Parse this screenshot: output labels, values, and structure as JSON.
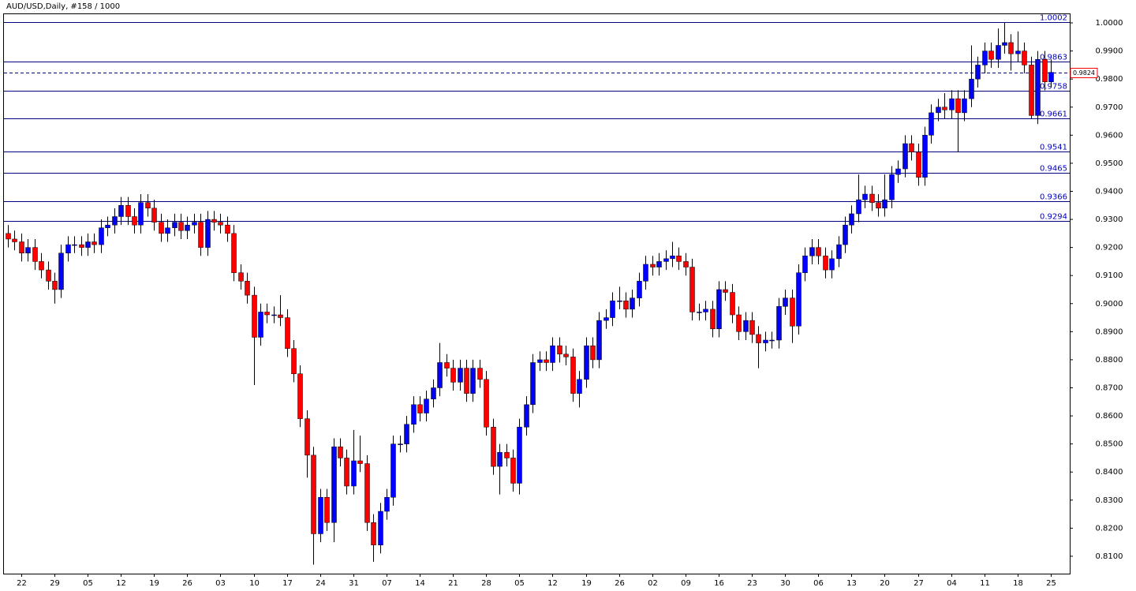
{
  "chart_data": {
    "type": "candlestick",
    "title": "AUD/USD,Daily, #158 / 1000",
    "categories": [
      null,
      null,
      "22",
      null,
      null,
      null,
      null,
      "29",
      null,
      null,
      null,
      null,
      "05",
      null,
      null,
      null,
      null,
      "12",
      null,
      null,
      null,
      null,
      "19",
      null,
      null,
      null,
      null,
      "26",
      null,
      null,
      null,
      null,
      "03",
      null,
      null,
      null,
      null,
      "10",
      null,
      null,
      null,
      null,
      "17",
      null,
      null,
      null,
      null,
      "24",
      null,
      null,
      null,
      null,
      "31",
      null,
      null,
      null,
      null,
      "07",
      null,
      null,
      null,
      null,
      "14",
      null,
      null,
      null,
      null,
      "21",
      null,
      null,
      null,
      null,
      "28",
      null,
      null,
      null,
      null,
      "05",
      null,
      null,
      null,
      null,
      "12",
      null,
      null,
      null,
      null,
      "19",
      null,
      null,
      null,
      null,
      "26",
      null,
      null,
      null,
      null,
      "02",
      null,
      null,
      null,
      null,
      "09",
      null,
      null,
      null,
      null,
      "16",
      null,
      null,
      null,
      null,
      "23",
      null,
      null,
      null,
      null,
      "30",
      null,
      null,
      null,
      null,
      "06",
      null,
      null,
      null,
      null,
      "13",
      null,
      null,
      null,
      null,
      "20",
      null,
      null,
      null,
      null,
      "27",
      null,
      null,
      null,
      null,
      "04",
      null,
      null,
      null,
      null,
      "11",
      null,
      null,
      null,
      null,
      "18",
      null,
      null,
      null,
      null,
      "25"
    ],
    "open": [
      0.925,
      0.923,
      0.922,
      0.918,
      0.92,
      0.915,
      0.912,
      0.908,
      0.905,
      0.918,
      0.921,
      0.921,
      0.92,
      0.922,
      0.921,
      0.927,
      0.928,
      0.931,
      0.935,
      0.931,
      0.928,
      0.936,
      0.934,
      0.929,
      0.925,
      0.927,
      0.929,
      0.926,
      0.928,
      0.929,
      0.92,
      0.93,
      0.929,
      0.928,
      0.925,
      0.911,
      0.908,
      0.903,
      0.888,
      0.897,
      0.896,
      0.896,
      0.895,
      0.884,
      0.875,
      0.859,
      0.846,
      0.818,
      0.831,
      0.822,
      0.849,
      0.845,
      0.835,
      0.844,
      0.843,
      0.822,
      0.814,
      0.826,
      0.831,
      0.85,
      0.85,
      0.857,
      0.864,
      0.861,
      0.866,
      0.87,
      0.879,
      0.877,
      0.872,
      0.877,
      0.868,
      0.877,
      0.873,
      0.856,
      0.842,
      0.847,
      0.845,
      0.836,
      0.856,
      0.864,
      0.879,
      0.88,
      0.879,
      0.885,
      0.882,
      0.881,
      0.868,
      0.873,
      0.885,
      0.88,
      0.894,
      0.895,
      0.901,
      0.901,
      0.898,
      0.902,
      0.908,
      0.914,
      0.913,
      0.915,
      0.916,
      0.917,
      0.915,
      0.913,
      0.897,
      0.897,
      0.898,
      0.891,
      0.905,
      0.904,
      0.896,
      0.89,
      0.894,
      0.889,
      0.886,
      0.887,
      0.887,
      0.899,
      0.902,
      0.892,
      0.911,
      0.917,
      0.92,
      0.917,
      0.912,
      0.916,
      0.921,
      0.928,
      0.932,
      0.937,
      0.939,
      0.936,
      0.934,
      0.937,
      0.946,
      0.948,
      0.957,
      0.954,
      0.945,
      0.96,
      0.968,
      0.97,
      0.969,
      0.973,
      0.968,
      0.973,
      0.98,
      0.985,
      0.99,
      0.987,
      0.992,
      0.993,
      0.989,
      0.99,
      0.985,
      0.967,
      0.987,
      0.979
    ],
    "high": [
      0.928,
      0.926,
      0.925,
      0.923,
      0.923,
      0.918,
      0.915,
      0.911,
      0.921,
      0.924,
      0.924,
      0.924,
      0.925,
      0.925,
      0.93,
      0.931,
      0.934,
      0.938,
      0.938,
      0.934,
      0.939,
      0.939,
      0.937,
      0.932,
      0.93,
      0.932,
      0.932,
      0.931,
      0.932,
      0.932,
      0.933,
      0.933,
      0.932,
      0.931,
      0.928,
      0.914,
      0.911,
      0.906,
      0.9,
      0.9,
      0.899,
      0.903,
      0.898,
      0.887,
      0.878,
      0.862,
      0.849,
      0.834,
      0.834,
      0.852,
      0.852,
      0.848,
      0.855,
      0.853,
      0.846,
      0.825,
      0.829,
      0.834,
      0.853,
      0.853,
      0.86,
      0.867,
      0.867,
      0.869,
      0.873,
      0.886,
      0.882,
      0.88,
      0.88,
      0.88,
      0.88,
      0.88,
      0.876,
      0.859,
      0.85,
      0.85,
      0.848,
      0.859,
      0.867,
      0.882,
      0.883,
      0.883,
      0.888,
      0.888,
      0.885,
      0.884,
      0.876,
      0.888,
      0.888,
      0.897,
      0.898,
      0.904,
      0.906,
      0.904,
      0.905,
      0.911,
      0.917,
      0.917,
      0.918,
      0.919,
      0.922,
      0.92,
      0.918,
      0.916,
      0.9,
      0.901,
      0.901,
      0.908,
      0.908,
      0.907,
      0.899,
      0.897,
      0.897,
      0.892,
      0.89,
      0.89,
      0.902,
      0.905,
      0.905,
      0.914,
      0.92,
      0.923,
      0.923,
      0.92,
      0.919,
      0.924,
      0.931,
      0.935,
      0.946,
      0.942,
      0.942,
      0.939,
      0.946,
      0.949,
      0.951,
      0.96,
      0.96,
      0.957,
      0.963,
      0.971,
      0.973,
      0.975,
      0.976,
      0.976,
      0.976,
      0.992,
      0.988,
      0.993,
      0.993,
      0.998,
      1.0,
      0.996,
      0.997,
      0.993,
      0.988,
      0.99,
      0.99,
      0.987
    ],
    "low": [
      0.92,
      0.919,
      0.915,
      0.915,
      0.912,
      0.909,
      0.905,
      0.9,
      0.902,
      0.915,
      0.918,
      0.917,
      0.917,
      0.918,
      0.918,
      0.924,
      0.925,
      0.928,
      0.928,
      0.925,
      0.925,
      0.931,
      0.926,
      0.922,
      0.922,
      0.924,
      0.923,
      0.923,
      0.925,
      0.917,
      0.917,
      0.926,
      0.925,
      0.922,
      0.908,
      0.905,
      0.9,
      0.871,
      0.885,
      0.893,
      0.893,
      0.892,
      0.881,
      0.872,
      0.856,
      0.838,
      0.807,
      0.815,
      0.819,
      0.815,
      0.842,
      0.832,
      0.832,
      0.84,
      0.819,
      0.808,
      0.811,
      0.823,
      0.828,
      0.847,
      0.847,
      0.854,
      0.858,
      0.858,
      0.863,
      0.867,
      0.874,
      0.869,
      0.869,
      0.865,
      0.865,
      0.87,
      0.853,
      0.839,
      0.832,
      0.842,
      0.833,
      0.832,
      0.853,
      0.861,
      0.876,
      0.876,
      0.876,
      0.879,
      0.878,
      0.865,
      0.863,
      0.87,
      0.877,
      0.877,
      0.891,
      0.892,
      0.898,
      0.895,
      0.895,
      0.899,
      0.905,
      0.91,
      0.91,
      0.912,
      0.913,
      0.912,
      0.91,
      0.894,
      0.894,
      0.894,
      0.888,
      0.888,
      0.901,
      0.893,
      0.887,
      0.887,
      0.886,
      0.877,
      0.883,
      0.884,
      0.884,
      0.896,
      0.886,
      0.889,
      0.908,
      0.914,
      0.914,
      0.909,
      0.909,
      0.913,
      0.918,
      0.925,
      0.929,
      0.934,
      0.933,
      0.931,
      0.931,
      0.934,
      0.943,
      0.945,
      0.951,
      0.942,
      0.942,
      0.957,
      0.965,
      0.966,
      0.966,
      0.954,
      0.965,
      0.97,
      0.977,
      0.982,
      0.984,
      0.984,
      0.989,
      0.983,
      0.986,
      0.982,
      0.966,
      0.964,
      0.976,
      0.977
    ],
    "close": [
      0.923,
      0.922,
      0.918,
      0.92,
      0.915,
      0.912,
      0.908,
      0.905,
      0.918,
      0.921,
      0.921,
      0.92,
      0.922,
      0.921,
      0.927,
      0.928,
      0.931,
      0.935,
      0.931,
      0.928,
      0.936,
      0.934,
      0.929,
      0.925,
      0.927,
      0.929,
      0.926,
      0.928,
      0.929,
      0.92,
      0.93,
      0.929,
      0.928,
      0.925,
      0.911,
      0.908,
      0.903,
      0.888,
      0.897,
      0.896,
      0.896,
      0.895,
      0.884,
      0.875,
      0.859,
      0.846,
      0.818,
      0.831,
      0.822,
      0.849,
      0.845,
      0.835,
      0.844,
      0.843,
      0.822,
      0.814,
      0.826,
      0.831,
      0.85,
      0.85,
      0.857,
      0.864,
      0.861,
      0.866,
      0.87,
      0.879,
      0.877,
      0.872,
      0.877,
      0.868,
      0.877,
      0.873,
      0.856,
      0.842,
      0.847,
      0.845,
      0.836,
      0.856,
      0.864,
      0.879,
      0.88,
      0.879,
      0.885,
      0.882,
      0.881,
      0.868,
      0.873,
      0.885,
      0.88,
      0.894,
      0.895,
      0.901,
      0.901,
      0.898,
      0.902,
      0.908,
      0.914,
      0.913,
      0.915,
      0.916,
      0.917,
      0.915,
      0.913,
      0.897,
      0.897,
      0.898,
      0.891,
      0.905,
      0.904,
      0.896,
      0.89,
      0.894,
      0.889,
      0.886,
      0.887,
      0.887,
      0.899,
      0.902,
      0.892,
      0.911,
      0.917,
      0.92,
      0.917,
      0.912,
      0.916,
      0.921,
      0.928,
      0.932,
      0.937,
      0.939,
      0.936,
      0.934,
      0.937,
      0.946,
      0.948,
      0.957,
      0.954,
      0.945,
      0.96,
      0.968,
      0.97,
      0.969,
      0.973,
      0.968,
      0.973,
      0.98,
      0.985,
      0.99,
      0.987,
      0.992,
      0.993,
      0.989,
      0.99,
      0.985,
      0.967,
      0.987,
      0.979,
      0.9824
    ],
    "up_color": "#0000ff",
    "down_color": "#ff0000",
    "wick_color": "#000000",
    "levels": [
      1.0002,
      0.9863,
      0.9758,
      0.9661,
      0.9541,
      0.9465,
      0.9366,
      0.9294
    ],
    "level_color": "#000080",
    "price_line": 0.9824,
    "price_line_color": "#000080",
    "ylim": [
      0.8038,
      1.0031
    ],
    "yticks": [
      {
        "value": 0.81,
        "label": "0.8100"
      },
      {
        "value": 0.82,
        "label": "0.8200"
      },
      {
        "value": 0.83,
        "label": "0.8300"
      },
      {
        "value": 0.84,
        "label": "0.8400"
      },
      {
        "value": 0.85,
        "label": "0.8500"
      },
      {
        "value": 0.86,
        "label": "0.8600"
      },
      {
        "value": 0.87,
        "label": "0.8700"
      },
      {
        "value": 0.88,
        "label": "0.8800"
      },
      {
        "value": 0.89,
        "label": "0.8900"
      },
      {
        "value": 0.9,
        "label": "0.9000"
      },
      {
        "value": 0.91,
        "label": "0.9100"
      },
      {
        "value": 0.92,
        "label": "0.9200"
      },
      {
        "value": 0.93,
        "label": "0.9300"
      },
      {
        "value": 0.94,
        "label": "0.9400"
      },
      {
        "value": 0.95,
        "label": "0.9500"
      },
      {
        "value": 0.96,
        "label": "0.9600"
      },
      {
        "value": 0.97,
        "label": "0.9700"
      },
      {
        "value": 0.98,
        "label": "0.9800"
      },
      {
        "value": 0.99,
        "label": "0.9900"
      },
      {
        "value": 1.0,
        "label": "1.0000"
      }
    ],
    "grid": false
  }
}
